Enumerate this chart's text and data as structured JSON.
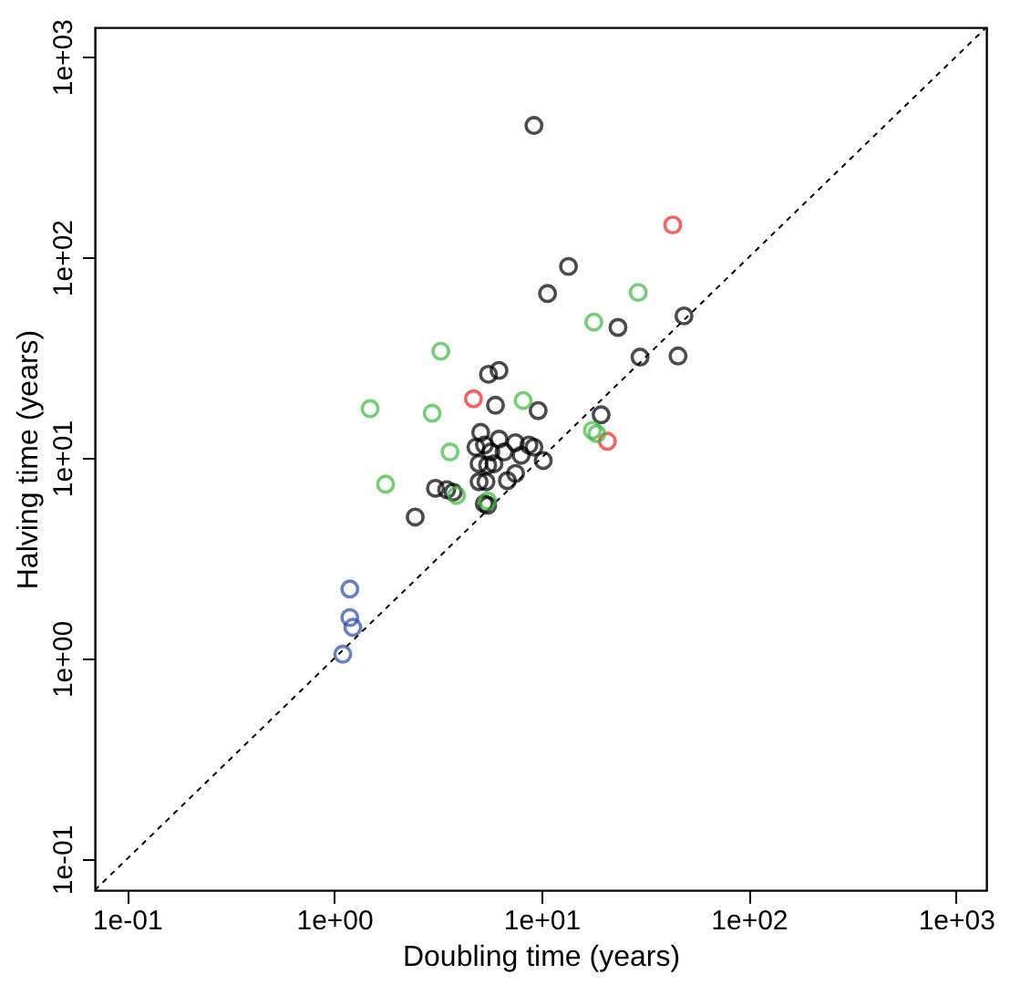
{
  "chart_data": {
    "type": "scatter",
    "xlabel": "Doubling time (years)",
    "ylabel": "Halving time (years)",
    "log": "xy",
    "grid": false,
    "marker": "circle",
    "xlim": [
      0.07,
      1400
    ],
    "ylim": [
      0.07,
      1400
    ],
    "xticks": [
      {
        "value": 0.1,
        "label": "1e-01"
      },
      {
        "value": 1,
        "label": "1e+00"
      },
      {
        "value": 10,
        "label": "1e+01"
      },
      {
        "value": 100,
        "label": "1e+02"
      },
      {
        "value": 1000,
        "label": "1e+03"
      }
    ],
    "yticks": [
      {
        "value": 0.1,
        "label": "1e-01"
      },
      {
        "value": 1,
        "label": "1e+00"
      },
      {
        "value": 10,
        "label": "1e+01"
      },
      {
        "value": 100,
        "label": "1e+02"
      },
      {
        "value": 1000,
        "label": "1e+03"
      }
    ],
    "series": [
      {
        "type": "line",
        "line_style": "dashed",
        "marker": "none",
        "color": "#000000",
        "x": [
          0.07,
          1400
        ],
        "values": [
          0.07,
          1400
        ]
      },
      {
        "color": "#000000",
        "x": [
          9.2,
          13.5,
          10.7,
          23.4,
          48.7,
          29.9,
          45.6,
          5.55,
          6.24,
          6.0,
          9.64,
          19.4,
          2.46,
          3.08,
          3.49,
          3.75,
          5.09,
          4.83,
          5.31,
          6.24,
          7.48,
          8.7,
          9.2,
          10.2,
          7.98,
          6.6,
          5.7,
          5.0,
          5.5,
          5.9,
          6.85,
          7.5,
          5.0,
          5.4,
          5.3,
          5.5
        ],
        "values": [
          454,
          90,
          66,
          44.7,
          51,
          31.8,
          32.2,
          26.1,
          27.3,
          18.3,
          17.2,
          16.4,
          5.07,
          7.05,
          6.94,
          6.74,
          13.4,
          11.3,
          11.6,
          12.4,
          11.9,
          11.6,
          11.3,
          9.7,
          10.3,
          10.7,
          10.7,
          9.35,
          9.2,
          9.35,
          7.7,
          8.36,
          7.6,
          7.6,
          5.9,
          5.8
        ]
      },
      {
        "color": "#ee2222",
        "x": [
          43,
          4.7,
          20.8
        ],
        "values": [
          145,
          19.7,
          12.1
        ]
      },
      {
        "color": "#3cb83c",
        "x": [
          3.27,
          29.3,
          17.9,
          1.49,
          2.97,
          8.16,
          3.62,
          1.77,
          3.89,
          5.5,
          17.6,
          18.5
        ],
        "values": [
          34,
          66.8,
          47.5,
          17.6,
          16.7,
          19.3,
          10.7,
          7.4,
          6.5,
          6.1,
          13.7,
          13.2
        ]
      },
      {
        "color": "#2b4ba8",
        "x": [
          1.19,
          1.19,
          1.23,
          1.1
        ],
        "values": [
          2.22,
          1.6,
          1.43,
          1.05
        ]
      }
    ]
  }
}
